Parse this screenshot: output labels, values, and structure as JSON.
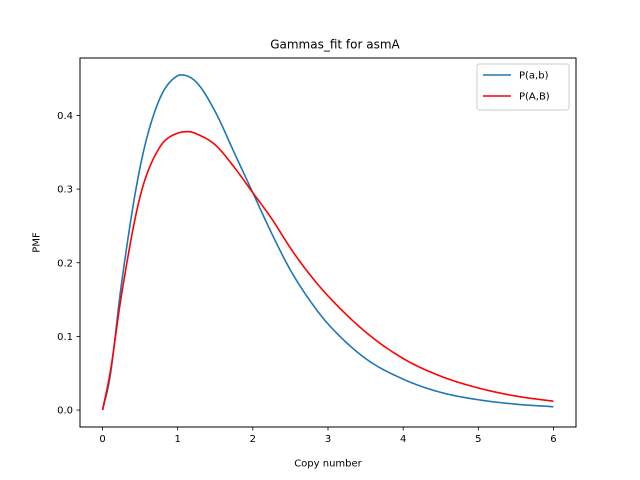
{
  "chart_data": {
    "type": "line",
    "title": "Gammas_fit for asmA",
    "xlabel": "Copy number",
    "ylabel": "PMF",
    "xlim": [
      -0.3,
      6.3
    ],
    "ylim": [
      -0.023,
      0.478
    ],
    "xticks": [
      0,
      1,
      2,
      3,
      4,
      5,
      6
    ],
    "xtick_labels": [
      "0",
      "1",
      "2",
      "3",
      "4",
      "5",
      "6"
    ],
    "yticks": [
      0.0,
      0.1,
      0.2,
      0.3,
      0.4
    ],
    "ytick_labels": [
      "0.0",
      "0.1",
      "0.2",
      "0.3",
      "0.4"
    ],
    "grid": false,
    "legend_position": "top-right",
    "series": [
      {
        "name": "P(a,b)",
        "color": "#1f77b4",
        "x": [
          0,
          0.1,
          0.25,
          0.5,
          0.75,
          1.0,
          1.05,
          1.25,
          1.5,
          1.75,
          2.0,
          2.25,
          2.5,
          2.75,
          3.0,
          3.5,
          4.0,
          4.5,
          5.0,
          5.5,
          6.0
        ],
        "y": [
          0,
          0.045,
          0.17,
          0.33,
          0.42,
          0.454,
          0.455,
          0.445,
          0.405,
          0.35,
          0.295,
          0.24,
          0.19,
          0.15,
          0.117,
          0.07,
          0.042,
          0.024,
          0.014,
          0.008,
          0.0045
        ]
      },
      {
        "name": "P(A,B)",
        "color": "#ff0000",
        "x": [
          0,
          0.1,
          0.25,
          0.5,
          0.75,
          1.0,
          1.15,
          1.25,
          1.5,
          1.75,
          2.0,
          2.25,
          2.5,
          2.75,
          3.0,
          3.5,
          4.0,
          4.5,
          5.0,
          5.5,
          6.0
        ],
        "y": [
          0,
          0.05,
          0.155,
          0.29,
          0.355,
          0.376,
          0.378,
          0.375,
          0.36,
          0.33,
          0.295,
          0.26,
          0.22,
          0.185,
          0.155,
          0.106,
          0.07,
          0.046,
          0.03,
          0.019,
          0.012
        ]
      }
    ]
  }
}
